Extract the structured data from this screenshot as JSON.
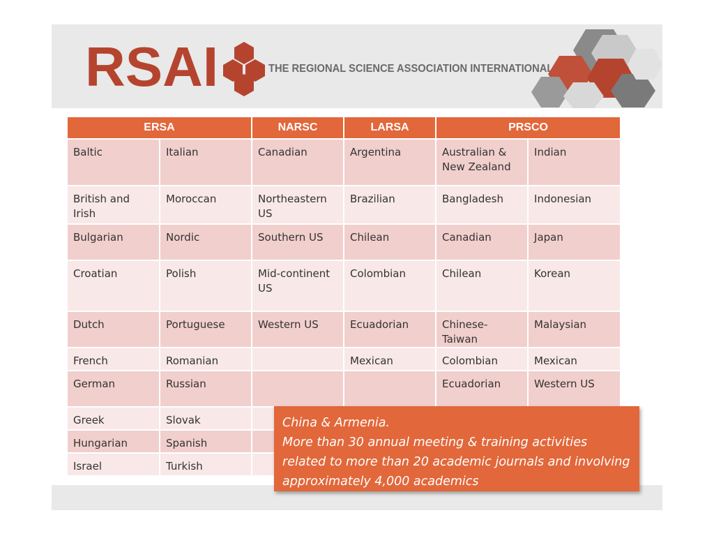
{
  "header": {
    "logo": "RSAI",
    "tagline": "THE REGIONAL SCIENCE ASSOCIATION INTERNATIONAL"
  },
  "table": {
    "headers": [
      "ERSA",
      "NARSC",
      "LARSA",
      "PRSCO"
    ],
    "rows": [
      [
        "Baltic",
        "Italian",
        "Canadian",
        "Argentina",
        "Australian & New Zealand",
        "Indian"
      ],
      [
        "British and Irish",
        "Moroccan",
        "Northeastern US",
        "Brazilian",
        "Bangladesh",
        "Indonesian"
      ],
      [
        "Bulgarian",
        "Nordic",
        "Southern US",
        "Chilean",
        "Canadian",
        "Japan"
      ],
      [
        "Croatian",
        "Polish",
        "Mid-continent US",
        "Colombian",
        "Chilean",
        "Korean"
      ],
      [
        "Dutch",
        "Portuguese",
        "Western US",
        "Ecuadorian",
        "Chinese-Taiwan",
        "Malaysian"
      ],
      [
        "French",
        "Romanian",
        "",
        "Mexican",
        "Colombian",
        "Mexican"
      ],
      [
        "German",
        "Russian",
        "",
        "",
        "Ecuadorian",
        "Western US"
      ],
      [
        "Greek",
        "Slovak",
        "",
        "",
        "",
        ""
      ],
      [
        "Hungarian",
        "Spanish",
        "",
        "",
        "",
        ""
      ],
      [
        "Israel",
        "Turkish",
        "",
        "",
        "",
        ""
      ]
    ]
  },
  "callout": {
    "lines": [
      "China & Armenia.",
      "More than 30 annual meeting & training activities",
      "related to more than 20 academic journals and involving",
      "approximately 4,000 academics"
    ]
  },
  "colors": {
    "brand_red": "#b5442f",
    "header_orange": "#e2673a",
    "row_dark": "#f1cfcd",
    "row_light": "#f8e8e7"
  }
}
